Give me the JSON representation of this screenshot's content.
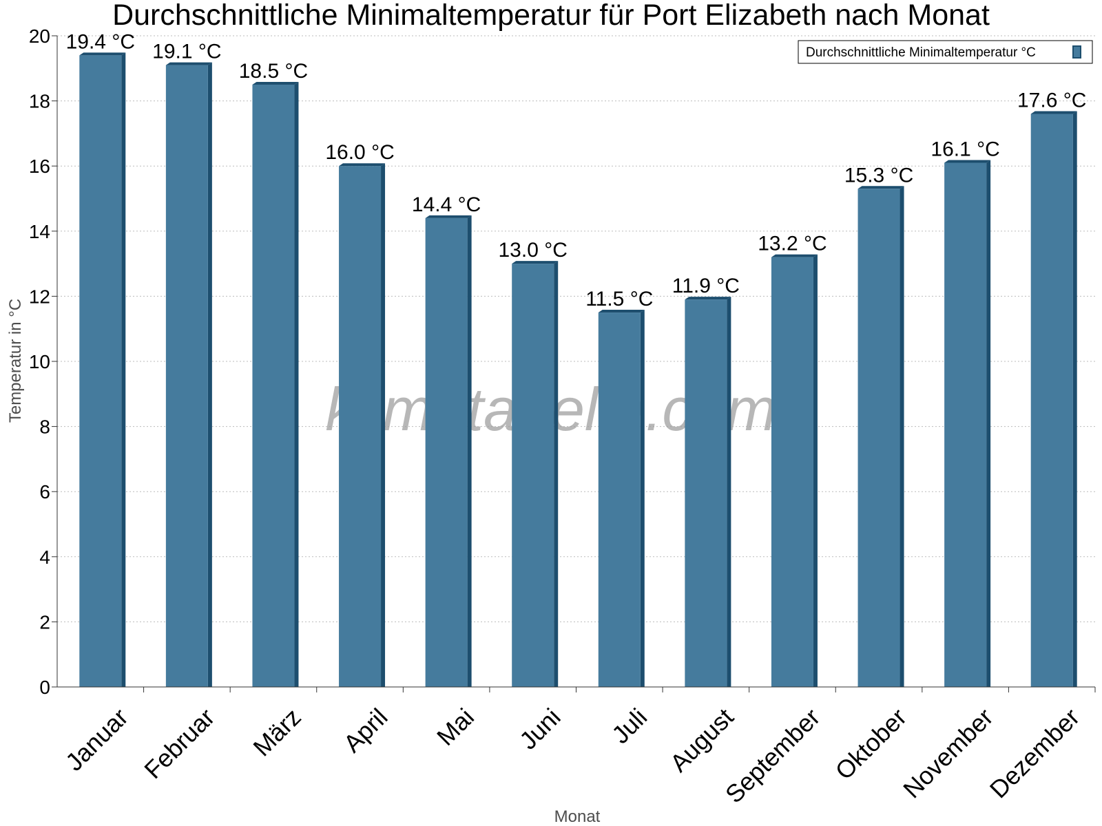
{
  "watermark": "klimatabelle.com",
  "colors": {
    "bar_face": "#457b9d",
    "bar_side": "#1d4e6e",
    "grid": "#bbbbbb",
    "axis": "#333333"
  },
  "chart_data": {
    "type": "bar",
    "title": "Durchschnittliche Minimaltemperatur für Port Elizabeth nach Monat",
    "xlabel": "Monat",
    "ylabel": "Temperatur in °C",
    "ylim": [
      0,
      20
    ],
    "yticks": [
      0,
      2,
      4,
      6,
      8,
      10,
      12,
      14,
      16,
      18,
      20
    ],
    "grid": true,
    "legend_position": "top-right",
    "categories": [
      "Januar",
      "Februar",
      "März",
      "April",
      "Mai",
      "Juni",
      "Juli",
      "August",
      "September",
      "Oktober",
      "November",
      "Dezember"
    ],
    "series": [
      {
        "name": "Durchschnittliche Minimaltemperatur °C",
        "values": [
          19.4,
          19.1,
          18.5,
          16.0,
          14.4,
          13.0,
          11.5,
          11.9,
          13.2,
          15.3,
          16.1,
          17.6
        ],
        "value_labels": [
          "19.4 °C",
          "19.1 °C",
          "18.5 °C",
          "16.0 °C",
          "14.4 °C",
          "13.0 °C",
          "11.5 °C",
          "11.9 °C",
          "13.2 °C",
          "15.3 °C",
          "16.1 °C",
          "17.6 °C"
        ]
      }
    ]
  }
}
